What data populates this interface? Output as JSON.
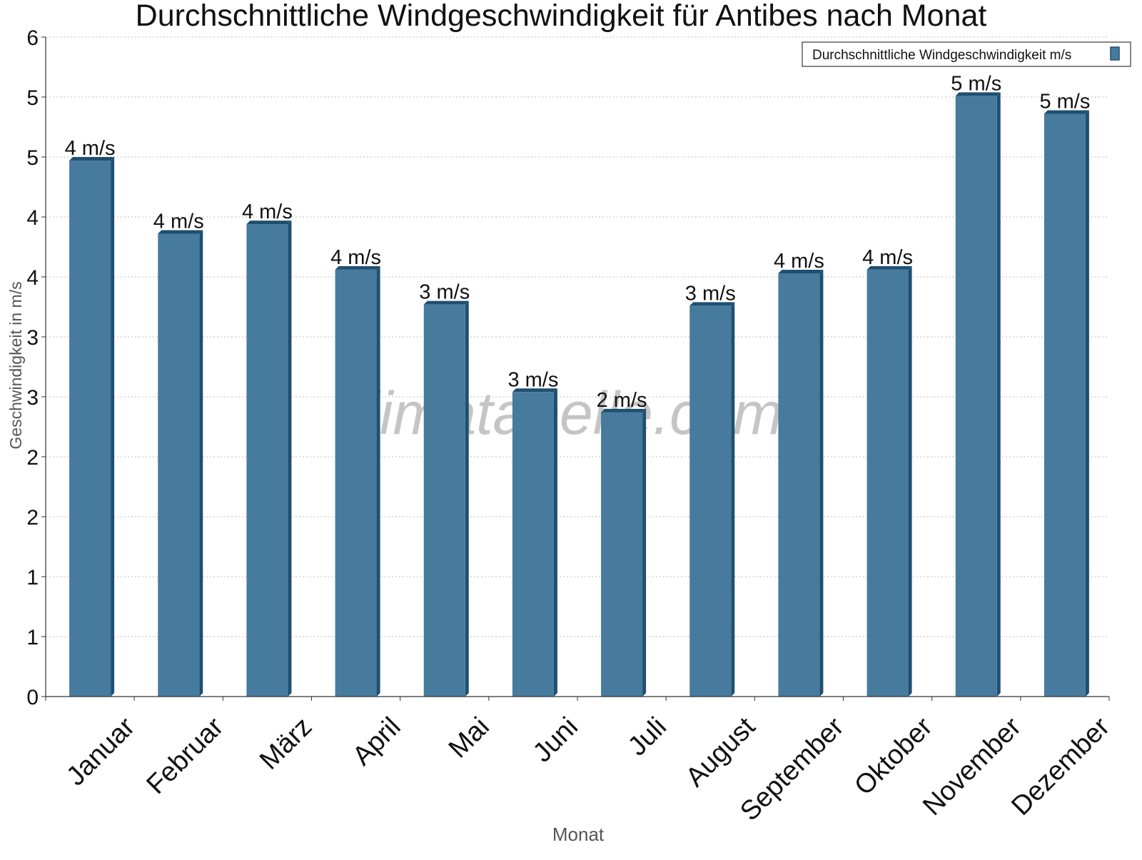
{
  "chart_data": {
    "type": "bar",
    "title": "Durchschnittliche Windgeschwindigkeit für Antibes nach Monat",
    "xlabel": "Monat",
    "ylabel": "Geschwindigkeit in m/s",
    "ylim": [
      0,
      5.5
    ],
    "y_ticks": [
      {
        "value": 0,
        "label": "0"
      },
      {
        "value": 0.5,
        "label": "1"
      },
      {
        "value": 1.0,
        "label": "1"
      },
      {
        "value": 1.5,
        "label": "2"
      },
      {
        "value": 2.0,
        "label": "2"
      },
      {
        "value": 2.5,
        "label": "3"
      },
      {
        "value": 3.0,
        "label": "3"
      },
      {
        "value": 3.5,
        "label": "4"
      },
      {
        "value": 4.0,
        "label": "4"
      },
      {
        "value": 4.5,
        "label": "5"
      },
      {
        "value": 5.0,
        "label": "5"
      },
      {
        "value": 5.5,
        "label": "6"
      }
    ],
    "grid": true,
    "legend": {
      "position": "top-right"
    },
    "categories": [
      "Januar",
      "Februar",
      "März",
      "April",
      "Mai",
      "Juni",
      "Juli",
      "August",
      "September",
      "Oktober",
      "November",
      "Dezember"
    ],
    "series": [
      {
        "name": "Durchschnittliche Windgeschwindigkeit m/s",
        "color": "#467b9e",
        "values": [
          4.47,
          3.86,
          3.94,
          3.56,
          3.27,
          2.54,
          2.37,
          3.26,
          3.53,
          3.56,
          5.01,
          4.86
        ],
        "labels": [
          "4 m/s",
          "4 m/s",
          "4 m/s",
          "4 m/s",
          "3 m/s",
          "3 m/s",
          "2 m/s",
          "3 m/s",
          "4 m/s",
          "4 m/s",
          "5 m/s",
          "5 m/s"
        ]
      }
    ],
    "watermark": "klimatabelle.com"
  }
}
